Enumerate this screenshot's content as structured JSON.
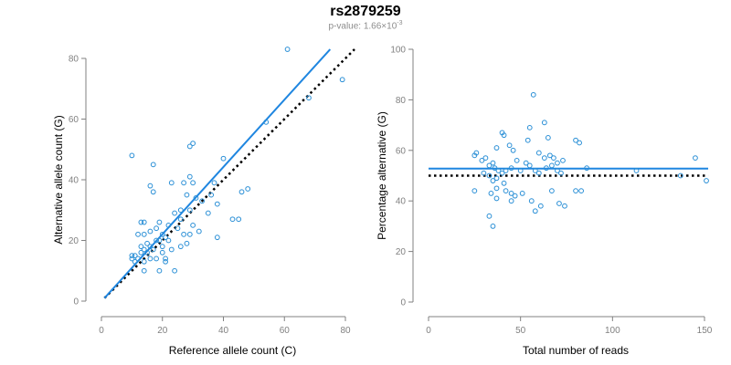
{
  "title": "rs2879259",
  "subtitle": {
    "prefix": "p-value: 1.66×10",
    "exponent": "-3"
  },
  "colors": {
    "points": "#2a8fd6",
    "fit": "#1f86e0",
    "reference": "#000000",
    "axis": "#808080"
  },
  "chart_data": [
    {
      "type": "scatter",
      "xlabel": "Reference allele count (C)",
      "ylabel": "Alternative allele count (G)",
      "xlim": [
        0,
        80
      ],
      "ylim": [
        0,
        80
      ],
      "xticks": [
        0,
        20,
        40,
        60,
        80
      ],
      "yticks": [
        0,
        20,
        40,
        60,
        80
      ],
      "grid": false,
      "fit_line": {
        "x": [
          1,
          75
        ],
        "y": [
          1,
          83
        ]
      },
      "reference_line": {
        "x": [
          1,
          83
        ],
        "y": [
          1,
          83
        ]
      },
      "points": [
        [
          61,
          83
        ],
        [
          79,
          73
        ],
        [
          54,
          59
        ],
        [
          68,
          67
        ],
        [
          10,
          48
        ],
        [
          30,
          52
        ],
        [
          29,
          51
        ],
        [
          17,
          45
        ],
        [
          40,
          47
        ],
        [
          16,
          38
        ],
        [
          17,
          36
        ],
        [
          23,
          39
        ],
        [
          27,
          39
        ],
        [
          29,
          41
        ],
        [
          30,
          39
        ],
        [
          31,
          34
        ],
        [
          28,
          35
        ],
        [
          26,
          30
        ],
        [
          29,
          30
        ],
        [
          33,
          33
        ],
        [
          36,
          35
        ],
        [
          35,
          29
        ],
        [
          38,
          32
        ],
        [
          37,
          39
        ],
        [
          46,
          36
        ],
        [
          48,
          37
        ],
        [
          43,
          27
        ],
        [
          45,
          27
        ],
        [
          38,
          21
        ],
        [
          32,
          23
        ],
        [
          13,
          26
        ],
        [
          14,
          26
        ],
        [
          12,
          22
        ],
        [
          14,
          22
        ],
        [
          16,
          23
        ],
        [
          18,
          24
        ],
        [
          19,
          26
        ],
        [
          22,
          25
        ],
        [
          21,
          21
        ],
        [
          24,
          29
        ],
        [
          26,
          27
        ],
        [
          25,
          24
        ],
        [
          27,
          22
        ],
        [
          29,
          22
        ],
        [
          13,
          18
        ],
        [
          14,
          17
        ],
        [
          15,
          19
        ],
        [
          16,
          18
        ],
        [
          13,
          16
        ],
        [
          15,
          16
        ],
        [
          17,
          17
        ],
        [
          18,
          20
        ],
        [
          19,
          20
        ],
        [
          20,
          18
        ],
        [
          22,
          20
        ],
        [
          23,
          17
        ],
        [
          26,
          18
        ],
        [
          28,
          19
        ],
        [
          30,
          25
        ],
        [
          10,
          15
        ],
        [
          11,
          15
        ],
        [
          12,
          14
        ],
        [
          10,
          14
        ],
        [
          11,
          13
        ],
        [
          14,
          13
        ],
        [
          16,
          14
        ],
        [
          18,
          14
        ],
        [
          20,
          16
        ],
        [
          21,
          14
        ],
        [
          21,
          13
        ],
        [
          19,
          10
        ],
        [
          24,
          10
        ],
        [
          14,
          10
        ],
        [
          20,
          22
        ]
      ]
    },
    {
      "type": "scatter",
      "xlabel": "Total number of reads",
      "ylabel": "Percentage alternative (G)",
      "xlim": [
        0,
        150
      ],
      "ylim": [
        0,
        100
      ],
      "xticks": [
        0,
        50,
        100,
        150
      ],
      "yticks": [
        0,
        20,
        40,
        60,
        80,
        100
      ],
      "grid": false,
      "fit_line": {
        "x": [
          0,
          152
        ],
        "y": [
          52.8,
          52.8
        ]
      },
      "reference_line": {
        "x": [
          0,
          152
        ],
        "y": [
          50,
          50
        ]
      },
      "points": [
        [
          57,
          82
        ],
        [
          63,
          71
        ],
        [
          40,
          67
        ],
        [
          41,
          66
        ],
        [
          55,
          69
        ],
        [
          54,
          64
        ],
        [
          65,
          65
        ],
        [
          80,
          64
        ],
        [
          82,
          63
        ],
        [
          37,
          61
        ],
        [
          44,
          62
        ],
        [
          46,
          60
        ],
        [
          60,
          59
        ],
        [
          63,
          57
        ],
        [
          66,
          58
        ],
        [
          68,
          57
        ],
        [
          70,
          55
        ],
        [
          73,
          56
        ],
        [
          25,
          58
        ],
        [
          26,
          59
        ],
        [
          29,
          56
        ],
        [
          31,
          57
        ],
        [
          33,
          54
        ],
        [
          35,
          55
        ],
        [
          36,
          53
        ],
        [
          38,
          52
        ],
        [
          40,
          51
        ],
        [
          42,
          52
        ],
        [
          45,
          53
        ],
        [
          48,
          56
        ],
        [
          50,
          52
        ],
        [
          53,
          55
        ],
        [
          55,
          54
        ],
        [
          58,
          52
        ],
        [
          60,
          51
        ],
        [
          64,
          53
        ],
        [
          67,
          54
        ],
        [
          70,
          52
        ],
        [
          72,
          51
        ],
        [
          86,
          53
        ],
        [
          30,
          51
        ],
        [
          33,
          50
        ],
        [
          35,
          48
        ],
        [
          37,
          49
        ],
        [
          41,
          47
        ],
        [
          25,
          44
        ],
        [
          34,
          43
        ],
        [
          37,
          45
        ],
        [
          42,
          44
        ],
        [
          45,
          43
        ],
        [
          47,
          42
        ],
        [
          51,
          43
        ],
        [
          67,
          44
        ],
        [
          80,
          44
        ],
        [
          83,
          44
        ],
        [
          74,
          38
        ],
        [
          71,
          39
        ],
        [
          37,
          41
        ],
        [
          45,
          40
        ],
        [
          56,
          40
        ],
        [
          61,
          38
        ],
        [
          33,
          34
        ],
        [
          58,
          36
        ],
        [
          35,
          30
        ],
        [
          113,
          52
        ],
        [
          137,
          50
        ],
        [
          145,
          57
        ],
        [
          151,
          48
        ]
      ]
    }
  ]
}
